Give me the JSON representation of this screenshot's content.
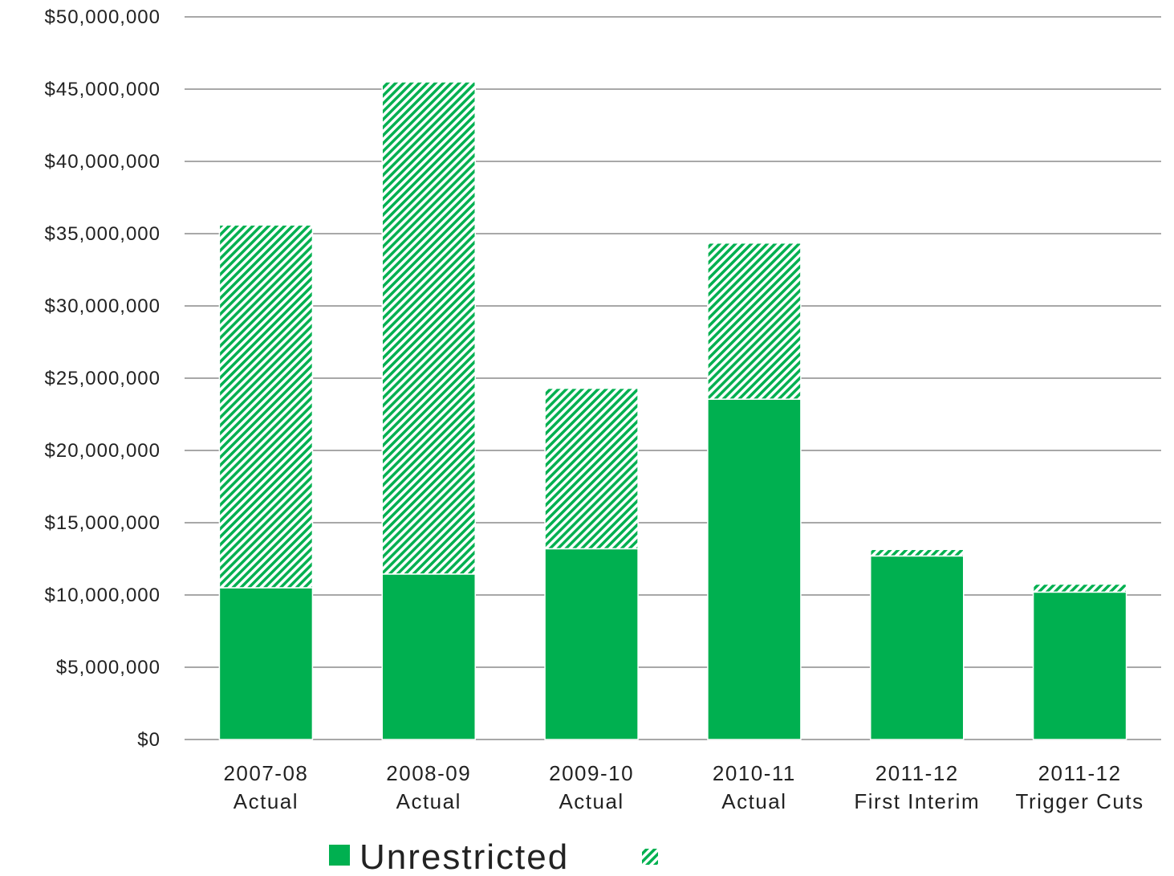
{
  "chart_data": {
    "type": "bar",
    "stacked": true,
    "categories": [
      [
        "2007-08",
        "Actual"
      ],
      [
        "2008-09",
        "Actual"
      ],
      [
        "2009-10",
        "Actual"
      ],
      [
        "2010-11",
        "Actual"
      ],
      [
        "2011-12",
        "First Interim"
      ],
      [
        "2011-12",
        "Trigger Cuts"
      ]
    ],
    "series": [
      {
        "name": "Unrestricted",
        "color": "#00b050",
        "pattern": "solid",
        "values": [
          10500000,
          11450000,
          13200000,
          23550000,
          12700000,
          10200000
        ]
      },
      {
        "name": "",
        "color": "#00b050",
        "pattern": "diagonal-hatch",
        "values": [
          25100000,
          34050000,
          11100000,
          10800000,
          450000,
          550000
        ]
      }
    ],
    "ylim": [
      0,
      50000000
    ],
    "yticks": [
      0,
      5000000,
      10000000,
      15000000,
      20000000,
      25000000,
      30000000,
      35000000,
      40000000,
      45000000,
      50000000
    ],
    "ytick_labels": [
      "$0",
      "$5,000,000",
      "$10,000,000",
      "$15,000,000",
      "$20,000,000",
      "$25,000,000",
      "$30,000,000",
      "$35,000,000",
      "$40,000,000",
      "$45,000,000",
      "$50,000,000"
    ],
    "grid": true,
    "legend_position": "bottom",
    "title": "",
    "xlabel": "",
    "ylabel": ""
  }
}
